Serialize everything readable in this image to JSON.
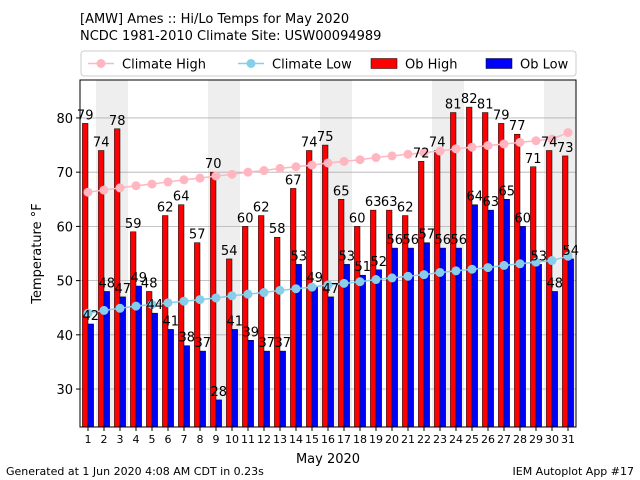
{
  "header": {
    "title": "[AMW] Ames :: Hi/Lo Temps for May 2020",
    "subtitle": "NCDC 1981-2010 Climate Site: USW00094989"
  },
  "footer": {
    "left": "Generated at 1 Jun 2020 4:08 AM CDT in 0.23s",
    "right": "IEM Autoplot App #17"
  },
  "chart_data": {
    "type": "bar",
    "xlabel": "May 2020",
    "ylabel": "Temperature °F",
    "ylim": [
      23,
      87
    ],
    "yticks": [
      30,
      40,
      50,
      60,
      70,
      80
    ],
    "grid": true,
    "legend_position": "top",
    "weekend_shading_days": [
      2,
      3,
      9,
      10,
      16,
      17,
      23,
      24,
      30,
      31
    ],
    "categories": [
      1,
      2,
      3,
      4,
      5,
      6,
      7,
      8,
      9,
      10,
      11,
      12,
      13,
      14,
      15,
      16,
      17,
      18,
      19,
      20,
      21,
      22,
      23,
      24,
      25,
      26,
      27,
      28,
      29,
      30,
      31
    ],
    "series": [
      {
        "name": "Climate High",
        "kind": "line",
        "color": "#ffb6c1",
        "values": [
          66.3,
          66.7,
          67.1,
          67.5,
          67.8,
          68.2,
          68.6,
          68.9,
          69.3,
          69.6,
          70.0,
          70.3,
          70.7,
          71.0,
          71.3,
          71.7,
          72.0,
          72.3,
          72.7,
          73.0,
          73.3,
          73.6,
          73.9,
          74.3,
          74.6,
          74.9,
          75.2,
          75.5,
          75.8,
          76.1,
          77.3
        ]
      },
      {
        "name": "Climate Low",
        "kind": "line",
        "color": "#87ceeb",
        "values": [
          44.0,
          44.5,
          44.9,
          45.3,
          45.6,
          45.9,
          46.2,
          46.5,
          46.8,
          47.2,
          47.5,
          47.8,
          48.2,
          48.5,
          48.8,
          49.2,
          49.5,
          49.8,
          50.2,
          50.5,
          50.8,
          51.1,
          51.5,
          51.8,
          52.1,
          52.4,
          52.8,
          53.1,
          53.4,
          53.7,
          54.5
        ]
      },
      {
        "name": "Ob High",
        "kind": "bar",
        "color": "#ff0000",
        "values": [
          79,
          74,
          78,
          59,
          48,
          62,
          64,
          57,
          70,
          54,
          60,
          62,
          58,
          67,
          74,
          75,
          65,
          60,
          63,
          63,
          62,
          72,
          74,
          81,
          82,
          81,
          79,
          77,
          71,
          74,
          73
        ]
      },
      {
        "name": "Ob Low",
        "kind": "bar",
        "color": "#0000ff",
        "values": [
          42,
          48,
          47,
          49,
          44,
          41,
          38,
          37,
          28,
          41,
          39,
          37,
          37,
          53,
          49,
          47,
          53,
          51,
          52,
          56,
          56,
          57,
          56,
          56,
          64,
          63,
          65,
          60,
          53,
          48,
          54
        ]
      }
    ]
  }
}
